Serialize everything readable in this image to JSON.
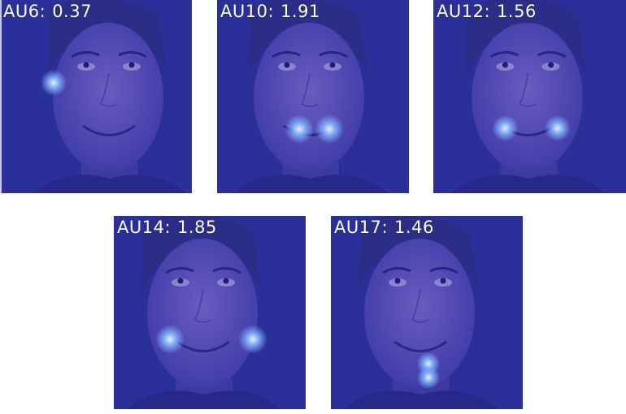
{
  "panels": [
    {
      "au": "AU6",
      "value": "0.37",
      "highlight": "right-cheek"
    },
    {
      "au": "AU10",
      "value": "1.91",
      "highlight": "upper-lip-corners"
    },
    {
      "au": "AU12",
      "value": "1.56",
      "highlight": "lip-corners"
    },
    {
      "au": "AU14",
      "value": "1.85",
      "highlight": "dimpler"
    },
    {
      "au": "AU17",
      "value": "1.46",
      "highlight": "chin"
    }
  ],
  "colors": {
    "overlay": "#2a2f9a",
    "face": "#5a4fb0",
    "glow": "#7fb2ff",
    "label": "#ffffff"
  }
}
